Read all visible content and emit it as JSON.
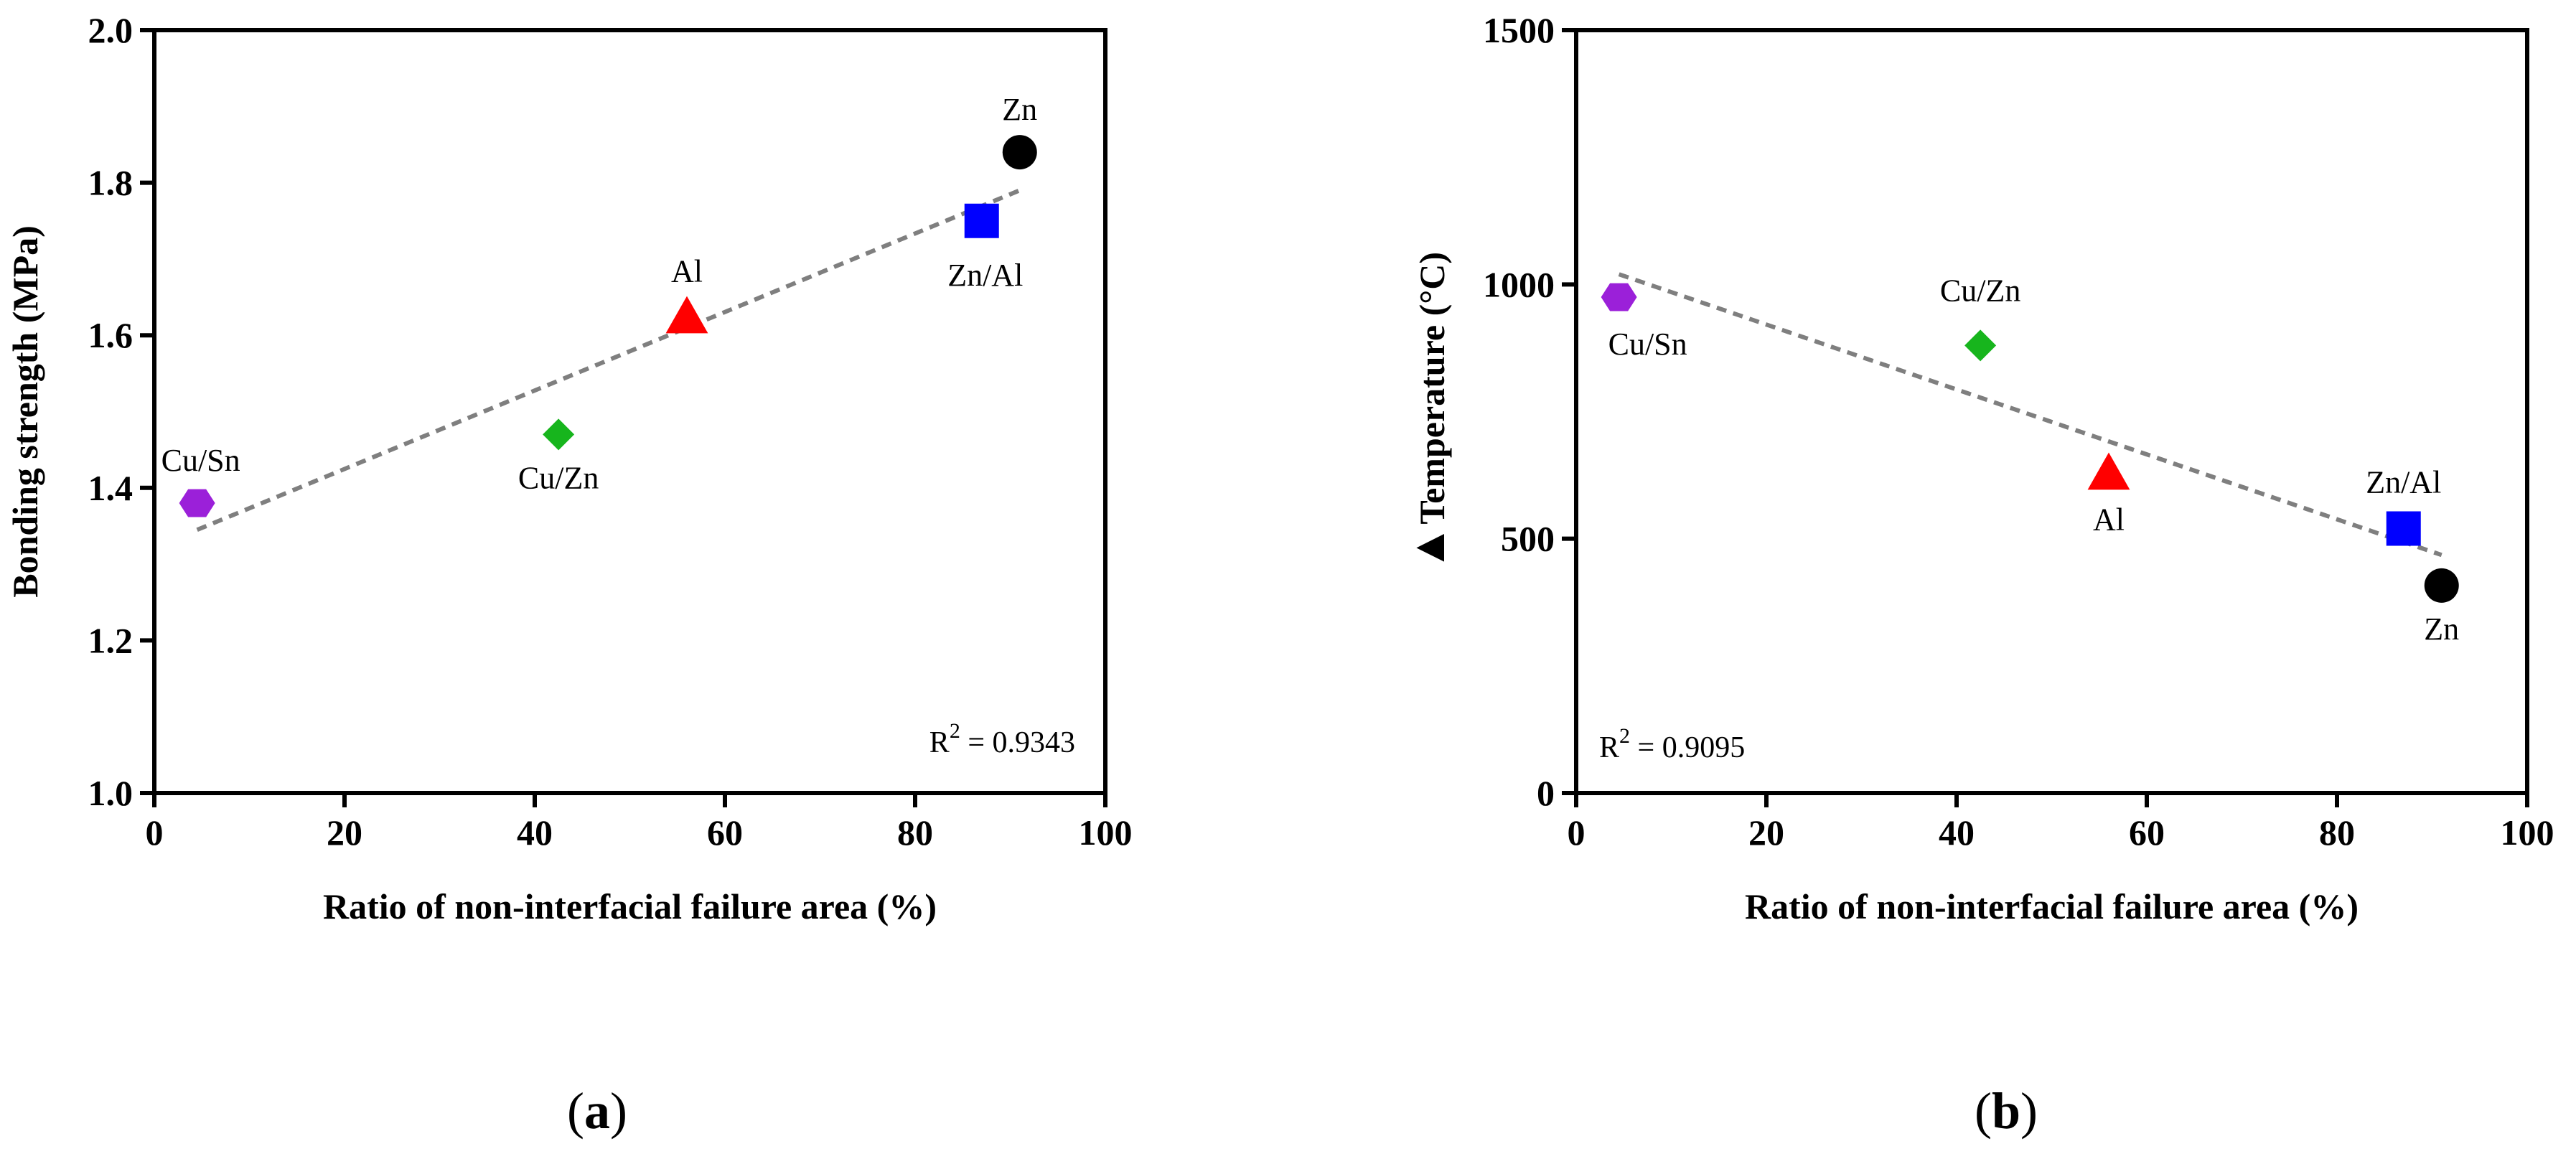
{
  "chart_data": [
    {
      "type": "scatter",
      "panel": "a",
      "panel_label": "a",
      "xlabel": "Ratio of non-interfacial failure area (%)",
      "ylabel": "Bonding strength (MPa)",
      "xlim": [
        0,
        100
      ],
      "ylim": [
        1.0,
        2.0
      ],
      "xticks": [
        "0",
        "20",
        "40",
        "60",
        "80",
        "100"
      ],
      "yticks": [
        "1.0",
        "1.2",
        "1.4",
        "1.6",
        "1.8",
        "2.0"
      ],
      "grid": false,
      "points": [
        {
          "label": "Cu/Sn",
          "x": 4.5,
          "y": 1.38,
          "marker": "hexagon",
          "color": "#9b20d9"
        },
        {
          "label": "Cu/Zn",
          "x": 42.5,
          "y": 1.47,
          "marker": "diamond",
          "color": "#17b51d"
        },
        {
          "label": "Al",
          "x": 56.0,
          "y": 1.625,
          "marker": "triangle",
          "color": "#ff0000"
        },
        {
          "label": "Zn/Al",
          "x": 87.0,
          "y": 1.75,
          "marker": "square",
          "color": "#0000ff"
        },
        {
          "label": "Zn",
          "x": 91.0,
          "y": 1.84,
          "marker": "circle",
          "color": "#000000"
        }
      ],
      "fit_line": {
        "x": [
          4.5,
          91.0
        ],
        "y": [
          1.345,
          1.79
        ],
        "style": "dashed",
        "color": "#7f7f7f"
      },
      "r2_label": "R",
      "r2_sup": "2",
      "r2_value": " = 0.9343"
    },
    {
      "type": "scatter",
      "panel": "b",
      "panel_label": "b",
      "xlabel": "Ratio of non-interfacial failure area (%)",
      "ylabel": "Temperature (°C)",
      "ylabel_prefix": "▲",
      "xlim": [
        0,
        100
      ],
      "ylim": [
        0,
        1500
      ],
      "xticks": [
        "0",
        "20",
        "40",
        "60",
        "80",
        "100"
      ],
      "yticks": [
        "0",
        "500",
        "1000",
        "1500"
      ],
      "grid": false,
      "points": [
        {
          "label": "Cu/Sn",
          "x": 4.5,
          "y": 975,
          "marker": "hexagon",
          "color": "#9b20d9"
        },
        {
          "label": "Cu/Zn",
          "x": 42.5,
          "y": 880,
          "marker": "diamond",
          "color": "#17b51d"
        },
        {
          "label": "Al",
          "x": 56.0,
          "y": 630,
          "marker": "triangle",
          "color": "#ff0000"
        },
        {
          "label": "Zn/Al",
          "x": 87.0,
          "y": 520,
          "marker": "square",
          "color": "#0000ff"
        },
        {
          "label": "Zn",
          "x": 91.0,
          "y": 408,
          "marker": "circle",
          "color": "#000000"
        }
      ],
      "fit_line": {
        "x": [
          4.5,
          91.0
        ],
        "y": [
          1020,
          468
        ],
        "style": "dashed",
        "color": "#7f7f7f"
      },
      "r2_label": "R",
      "r2_sup": "2",
      "r2_value": " = 0.9095"
    }
  ]
}
